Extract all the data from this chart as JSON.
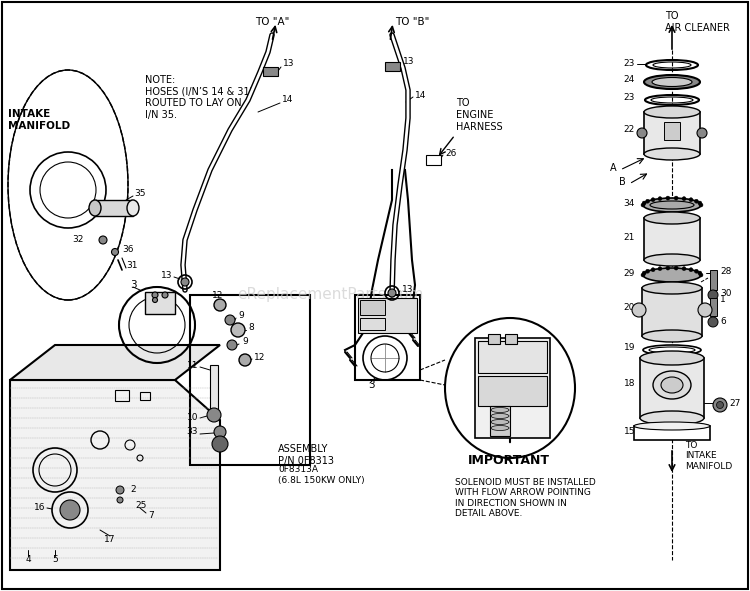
{
  "bg_color": "#ffffff",
  "fig_width": 7.5,
  "fig_height": 5.91,
  "watermark": "eReplacementParts.com",
  "labels": {
    "intake_manifold": "INTAKE\nMANIFOLD",
    "note": "NOTE:\nHOSES (I/N’S 14 & 31)\nROUTED TO LAY ON\nI/N 35.",
    "to_a": "TO \"A\"",
    "to_b": "TO \"B\"",
    "to_engine_harness": "TO\nENGINE\nHARNESS",
    "to_air_cleaner": "TO\nAIR CLEANER",
    "to_intake_manifold": "TO\nINTAKE\nMANIFOLD",
    "assembly": "ASSEMBLY\nP/N 0F8313",
    "assembly2": "0F8313A\n(6.8L 150KW ONLY)",
    "important": "IMPORTANT",
    "solenoid_note": "SOLENOID MUST BE INSTALLED\nWITH FLOW ARROW POINTING\nIN DIRECTION SHOWN IN\nDETAIL ABOVE."
  }
}
